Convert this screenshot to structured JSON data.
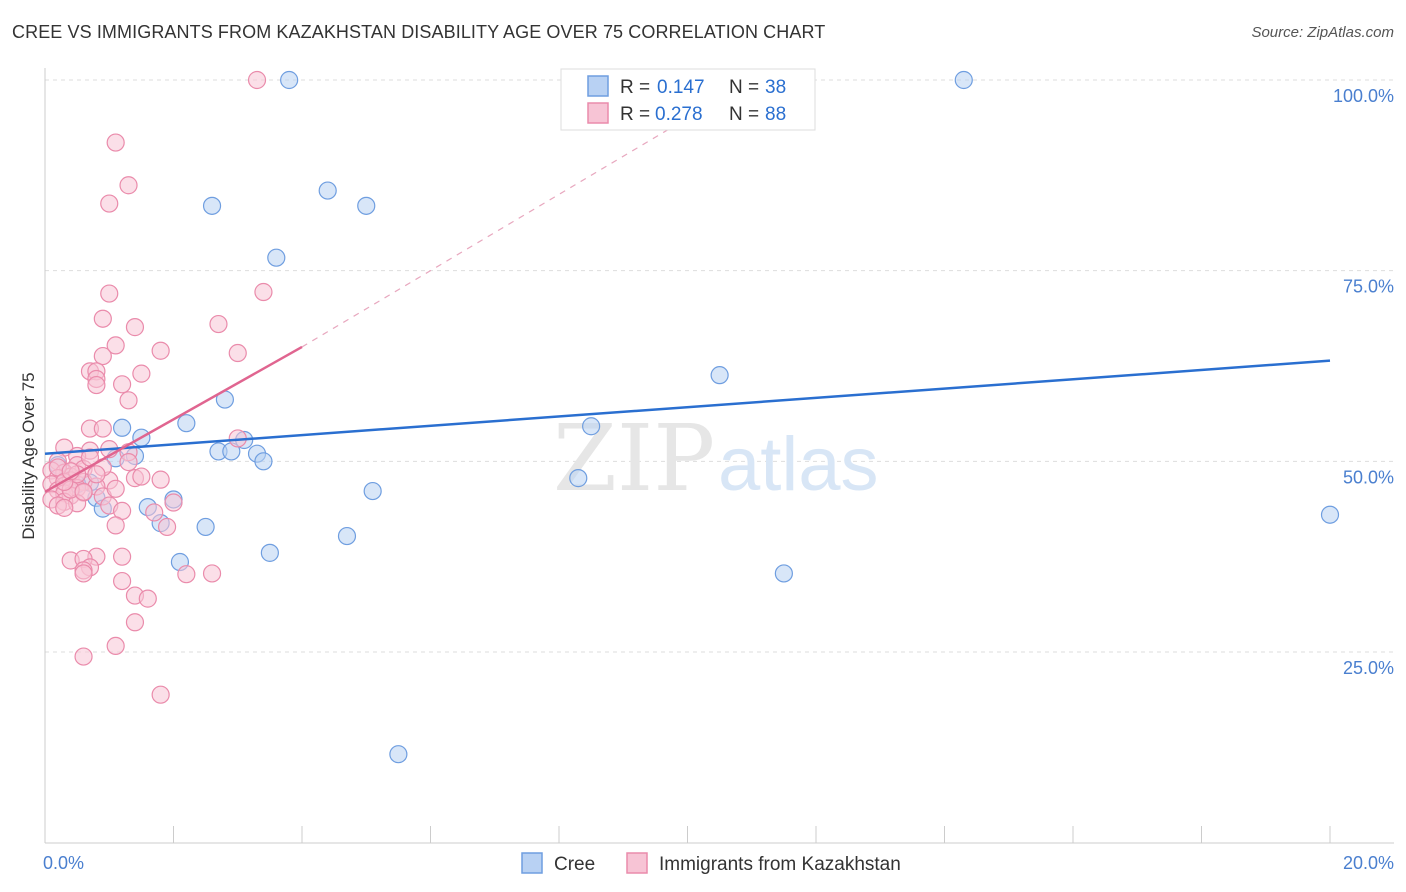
{
  "title": "CREE VS IMMIGRANTS FROM KAZAKHSTAN DISABILITY AGE OVER 75 CORRELATION CHART",
  "source": "Source: ZipAtlas.com",
  "watermark": {
    "zip": "ZIP",
    "atlas": "atlas"
  },
  "legend": {
    "r_label": "R = ",
    "n_label": "N = ",
    "items": [
      {
        "name": "Cree",
        "r": "0.147",
        "n": "38",
        "fill": "#b8d1f3",
        "stroke": "#6f9ee0"
      },
      {
        "name": "Immigrants from Kazakhstan",
        "r": "0.278",
        "n": "88",
        "fill": "#f7c4d5",
        "stroke": "#ea8bab"
      }
    ]
  },
  "chart_data": {
    "type": "scatter",
    "title": "CREE VS IMMIGRANTS FROM KAZAKHSTAN DISABILITY AGE OVER 75 CORRELATION CHART",
    "xlabel": "",
    "ylabel": "Disability Age Over 75",
    "xlim": [
      0,
      20
    ],
    "ylim": [
      0,
      100
    ],
    "x_tick_labels": [
      "0.0%",
      "20.0%"
    ],
    "y_ticks": [
      {
        "value": 25,
        "label": "25.0%"
      },
      {
        "value": 50,
        "label": "50.0%"
      },
      {
        "value": 75,
        "label": "75.0%"
      },
      {
        "value": 100,
        "label": "100.0%"
      }
    ],
    "grid": true,
    "series": [
      {
        "name": "Cree",
        "color": "#4a7fcf",
        "fill": "#b8d1f3",
        "stroke": "#6f9ee0",
        "trend": {
          "x": [
            0,
            20
          ],
          "y": [
            51.0,
            63.2
          ],
          "color": "#2a6fd0"
        },
        "points": [
          [
            3.8,
            100
          ],
          [
            14.3,
            100
          ],
          [
            4.4,
            85.5
          ],
          [
            2.6,
            83.5
          ],
          [
            5.0,
            83.5
          ],
          [
            3.6,
            76.7
          ],
          [
            10.5,
            61.3
          ],
          [
            2.8,
            58.1
          ],
          [
            2.2,
            55.0
          ],
          [
            8.5,
            54.6
          ],
          [
            1.2,
            54.4
          ],
          [
            1.5,
            53.1
          ],
          [
            3.1,
            52.8
          ],
          [
            2.7,
            51.3
          ],
          [
            2.9,
            51.3
          ],
          [
            3.3,
            51.0
          ],
          [
            1.4,
            50.7
          ],
          [
            1.1,
            50.4
          ],
          [
            3.4,
            50.0
          ],
          [
            0.2,
            49.5
          ],
          [
            0.3,
            48.5
          ],
          [
            8.3,
            47.8
          ],
          [
            0.4,
            47.5
          ],
          [
            0.7,
            47.2
          ],
          [
            5.1,
            46.1
          ],
          [
            0.8,
            45.2
          ],
          [
            2.0,
            45.0
          ],
          [
            1.6,
            44.0
          ],
          [
            0.9,
            43.8
          ],
          [
            1.8,
            41.9
          ],
          [
            2.5,
            41.4
          ],
          [
            20.0,
            43.0
          ],
          [
            4.7,
            40.2
          ],
          [
            3.5,
            38.0
          ],
          [
            2.1,
            36.8
          ],
          [
            11.5,
            35.3
          ],
          [
            5.5,
            11.6
          ],
          [
            0.5,
            47.0
          ]
        ]
      },
      {
        "name": "Immigrants from Kazakhstan",
        "color": "#e0608a",
        "fill": "#f7c4d5",
        "stroke": "#ea8bab",
        "trend": {
          "x": [
            0,
            4.0
          ],
          "y": [
            46.0,
            65.0
          ],
          "color": "#e06590",
          "extended_to": [
            10.0,
            95.0
          ]
        },
        "points": [
          [
            3.3,
            100
          ],
          [
            1.1,
            91.8
          ],
          [
            1.3,
            86.2
          ],
          [
            1.0,
            83.8
          ],
          [
            1.0,
            72.0
          ],
          [
            3.4,
            72.2
          ],
          [
            0.9,
            68.7
          ],
          [
            2.7,
            68.0
          ],
          [
            1.4,
            67.6
          ],
          [
            1.1,
            65.2
          ],
          [
            1.8,
            64.5
          ],
          [
            3.0,
            64.2
          ],
          [
            0.9,
            63.8
          ],
          [
            0.7,
            61.8
          ],
          [
            0.8,
            61.8
          ],
          [
            1.5,
            61.5
          ],
          [
            0.8,
            60.8
          ],
          [
            0.8,
            60.0
          ],
          [
            1.2,
            60.1
          ],
          [
            1.3,
            58.0
          ],
          [
            0.7,
            54.3
          ],
          [
            0.9,
            54.3
          ],
          [
            3.0,
            53.0
          ],
          [
            0.3,
            51.8
          ],
          [
            0.7,
            51.4
          ],
          [
            1.0,
            51.6
          ],
          [
            1.3,
            51.2
          ],
          [
            0.5,
            50.7
          ],
          [
            1.3,
            49.9
          ],
          [
            0.2,
            50.0
          ],
          [
            0.5,
            49.5
          ],
          [
            0.6,
            49.0
          ],
          [
            0.1,
            48.8
          ],
          [
            0.3,
            48.5
          ],
          [
            0.4,
            48.0
          ],
          [
            0.2,
            47.8
          ],
          [
            0.4,
            47.5
          ],
          [
            0.6,
            47.3
          ],
          [
            1.0,
            47.5
          ],
          [
            1.4,
            47.8
          ],
          [
            1.8,
            47.6
          ],
          [
            0.1,
            47.0
          ],
          [
            0.3,
            46.8
          ],
          [
            0.5,
            46.5
          ],
          [
            0.8,
            46.7
          ],
          [
            0.2,
            46.2
          ],
          [
            0.3,
            45.8
          ],
          [
            0.4,
            45.5
          ],
          [
            0.6,
            45.9
          ],
          [
            0.9,
            45.4
          ],
          [
            0.1,
            45.0
          ],
          [
            0.3,
            44.7
          ],
          [
            0.5,
            44.5
          ],
          [
            1.0,
            44.2
          ],
          [
            2.0,
            44.6
          ],
          [
            0.2,
            44.2
          ],
          [
            0.3,
            43.9
          ],
          [
            1.2,
            43.5
          ],
          [
            1.7,
            43.3
          ],
          [
            1.9,
            41.4
          ],
          [
            1.1,
            41.6
          ],
          [
            1.2,
            37.5
          ],
          [
            0.8,
            37.5
          ],
          [
            0.4,
            37.0
          ],
          [
            0.6,
            37.2
          ],
          [
            0.7,
            36.1
          ],
          [
            0.6,
            35.7
          ],
          [
            0.6,
            35.3
          ],
          [
            2.2,
            35.2
          ],
          [
            2.6,
            35.3
          ],
          [
            1.2,
            34.3
          ],
          [
            1.4,
            32.4
          ],
          [
            1.6,
            32.0
          ],
          [
            1.4,
            28.9
          ],
          [
            1.1,
            25.8
          ],
          [
            0.6,
            24.4
          ],
          [
            1.8,
            19.4
          ],
          [
            0.4,
            46.3
          ],
          [
            0.5,
            48.3
          ],
          [
            0.2,
            49.2
          ],
          [
            0.7,
            50.5
          ],
          [
            1.5,
            48.0
          ],
          [
            0.9,
            49.2
          ],
          [
            0.3,
            47.3
          ],
          [
            0.6,
            46.0
          ],
          [
            1.1,
            46.4
          ],
          [
            0.4,
            48.7
          ],
          [
            0.8,
            48.3
          ]
        ]
      }
    ]
  }
}
